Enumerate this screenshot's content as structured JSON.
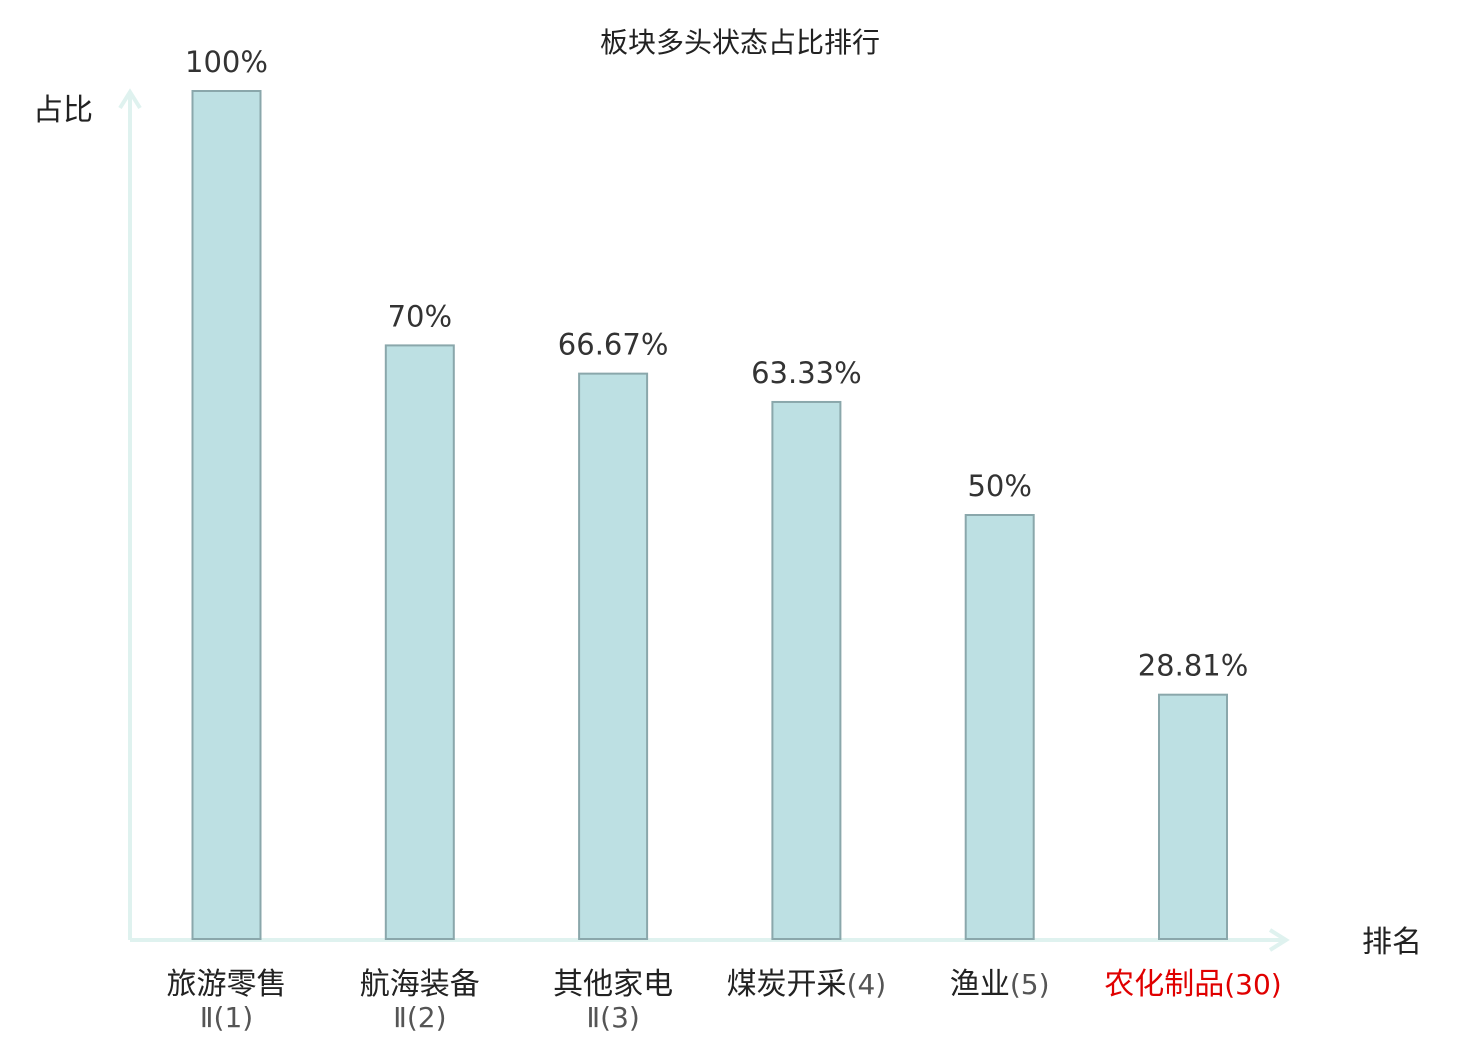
{
  "chart_data": {
    "type": "bar",
    "title": "板块多头状态占比排行",
    "ylabel": "占比",
    "xlabel": "排名",
    "ylim": [
      0,
      100
    ],
    "grid": false,
    "categories": [
      {
        "name": "旅游零售",
        "suffix": "Ⅱ(1)",
        "highlight": false
      },
      {
        "name": "航海装备",
        "suffix": "Ⅱ(2)",
        "highlight": false
      },
      {
        "name": "其他家电",
        "suffix": "Ⅱ(3)",
        "highlight": false
      },
      {
        "name": "煤炭开采",
        "suffix": "(4)",
        "highlight": false
      },
      {
        "name": "渔业",
        "suffix": "(5)",
        "highlight": false
      },
      {
        "name": "农化制品",
        "suffix": "(30)",
        "highlight": true
      }
    ],
    "values": [
      100,
      70,
      66.67,
      63.33,
      50,
      28.81
    ],
    "value_labels": [
      "100%",
      "70%",
      "66.67%",
      "63.33%",
      "50%",
      "28.81%"
    ]
  },
  "colors": {
    "bar_fill": "#bde0e3",
    "bar_stroke": "#8aa7ab",
    "axis": "#dff2ef",
    "text": "#333333",
    "highlight": "#e00000"
  }
}
